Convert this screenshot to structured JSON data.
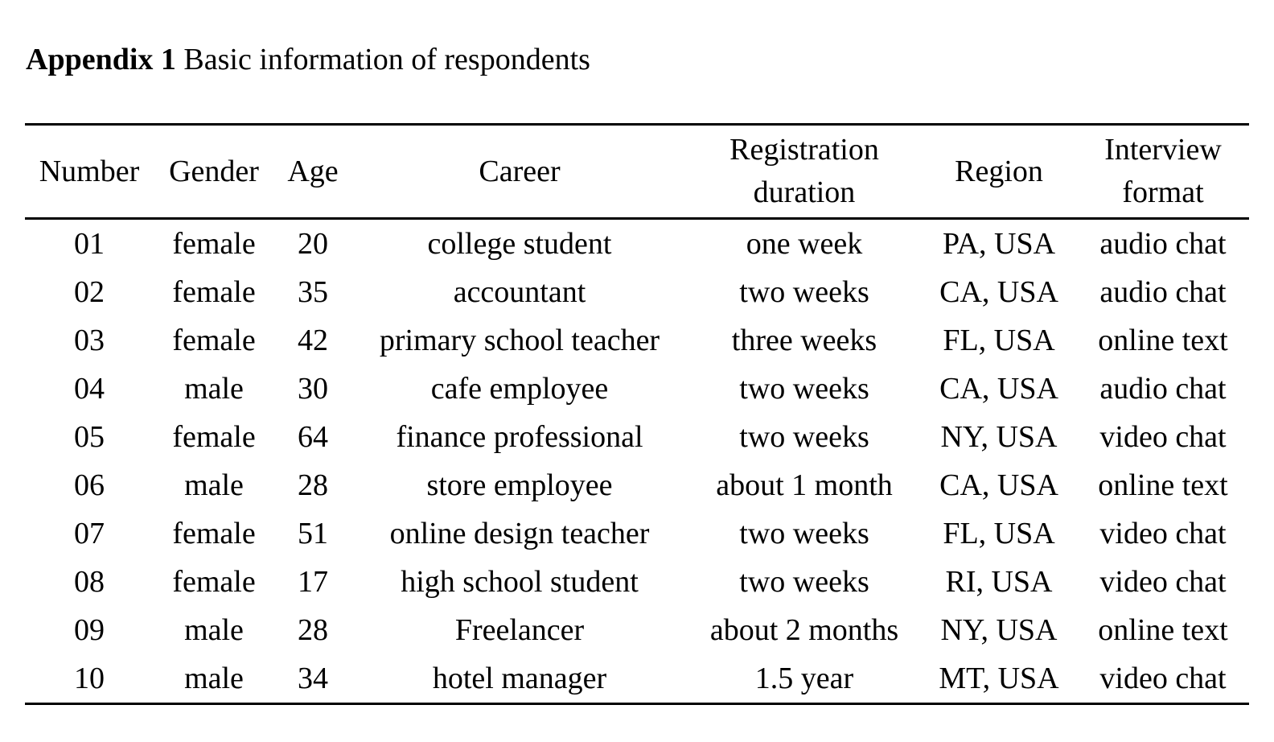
{
  "caption": {
    "lead": "Appendix 1",
    "text": "Basic information of respondents"
  },
  "table": {
    "headers": [
      [
        "Number"
      ],
      [
        "Gender"
      ],
      [
        "Age"
      ],
      [
        "Career"
      ],
      [
        "Registration",
        "duration"
      ],
      [
        "Region"
      ],
      [
        "Interview",
        "format"
      ]
    ],
    "rows": [
      [
        "01",
        "female",
        "20",
        "college student",
        "one week",
        "PA, USA",
        "audio chat"
      ],
      [
        "02",
        "female",
        "35",
        "accountant",
        "two weeks",
        "CA, USA",
        "audio chat"
      ],
      [
        "03",
        "female",
        "42",
        "primary school teacher",
        "three weeks",
        "FL, USA",
        "online text"
      ],
      [
        "04",
        "male",
        "30",
        "cafe employee",
        "two weeks",
        "CA, USA",
        "audio chat"
      ],
      [
        "05",
        "female",
        "64",
        "finance professional",
        "two weeks",
        "NY, USA",
        "video chat"
      ],
      [
        "06",
        "male",
        "28",
        "store employee",
        "about 1 month",
        "CA, USA",
        "online text"
      ],
      [
        "07",
        "female",
        "51",
        "online design teacher",
        "two weeks",
        "FL, USA",
        "video chat"
      ],
      [
        "08",
        "female",
        "17",
        "high school student",
        "two weeks",
        "RI, USA",
        "video chat"
      ],
      [
        "09",
        "male",
        "28",
        "Freelancer",
        "about 2 months",
        "NY, USA",
        "online text"
      ],
      [
        "10",
        "male",
        "34",
        "hotel manager",
        "1.5 year",
        "MT, USA",
        "video chat"
      ]
    ]
  }
}
